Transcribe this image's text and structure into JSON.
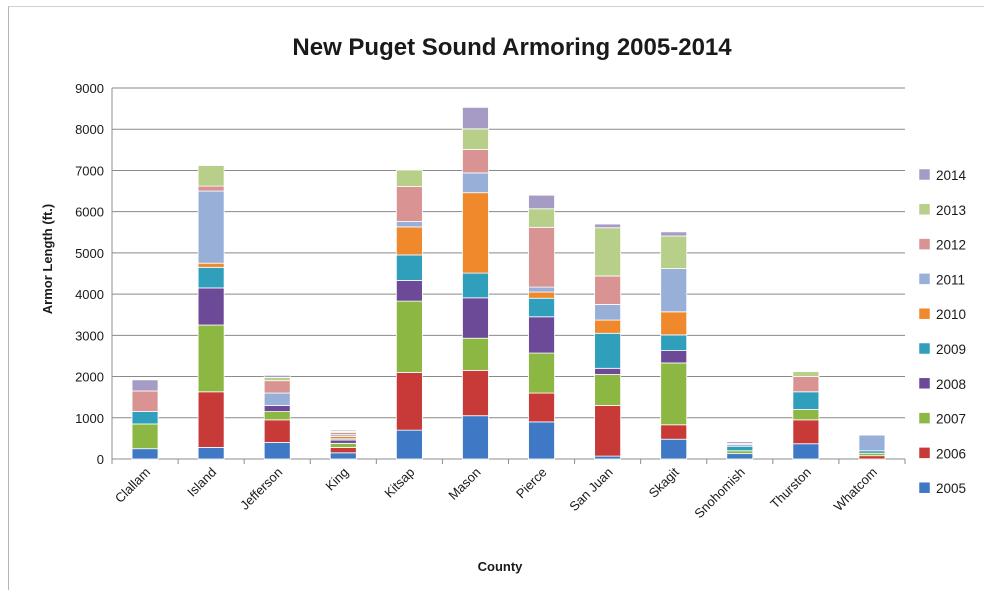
{
  "chart_data": {
    "type": "bar",
    "stacked": true,
    "title": "New Puget Sound Armoring 2005-2014",
    "xlabel": "County",
    "ylabel": "Armor Length (ft.)",
    "ylim": [
      0,
      9000
    ],
    "yticks": [
      0,
      1000,
      2000,
      3000,
      4000,
      5000,
      6000,
      7000,
      8000,
      9000
    ],
    "grid": true,
    "legend_position": "right",
    "categories": [
      "Clallam",
      "Island",
      "Jefferson",
      "King",
      "Kitsap",
      "Mason",
      "Pierce",
      "San Juan",
      "Skagit",
      "Snohomish",
      "Thurston",
      "Whatcom"
    ],
    "series": [
      {
        "name": "2005",
        "color": "#3f78c4",
        "values": [
          250,
          280,
          400,
          150,
          700,
          1050,
          900,
          70,
          480,
          130,
          370,
          0
        ]
      },
      {
        "name": "2006",
        "color": "#c83a37",
        "values": [
          0,
          1350,
          550,
          130,
          1400,
          1100,
          700,
          1230,
          350,
          0,
          580,
          80
        ]
      },
      {
        "name": "2007",
        "color": "#8db743",
        "values": [
          600,
          1620,
          200,
          100,
          1730,
          780,
          970,
          750,
          1500,
          70,
          250,
          60
        ]
      },
      {
        "name": "2008",
        "color": "#6d4a98",
        "values": [
          0,
          900,
          150,
          80,
          500,
          980,
          880,
          150,
          300,
          0,
          0,
          0
        ]
      },
      {
        "name": "2009",
        "color": "#2f9fbb",
        "values": [
          300,
          500,
          0,
          30,
          620,
          600,
          450,
          850,
          380,
          110,
          430,
          60
        ]
      },
      {
        "name": "2010",
        "color": "#f0882c",
        "values": [
          0,
          100,
          0,
          60,
          680,
          1950,
          150,
          320,
          560,
          0,
          0,
          0
        ]
      },
      {
        "name": "2011",
        "color": "#98b0d8",
        "values": [
          0,
          1750,
          300,
          40,
          130,
          480,
          120,
          380,
          1050,
          40,
          0,
          380
        ]
      },
      {
        "name": "2012",
        "color": "#d99392",
        "values": [
          500,
          120,
          300,
          50,
          850,
          570,
          1450,
          690,
          0,
          30,
          370,
          0
        ]
      },
      {
        "name": "2013",
        "color": "#b8cf8a",
        "values": [
          0,
          500,
          80,
          30,
          400,
          500,
          450,
          1170,
          790,
          0,
          120,
          0
        ]
      },
      {
        "name": "2014",
        "color": "#a59bc4",
        "values": [
          270,
          0,
          50,
          30,
          0,
          520,
          330,
          90,
          100,
          40,
          0,
          0
        ]
      }
    ]
  }
}
